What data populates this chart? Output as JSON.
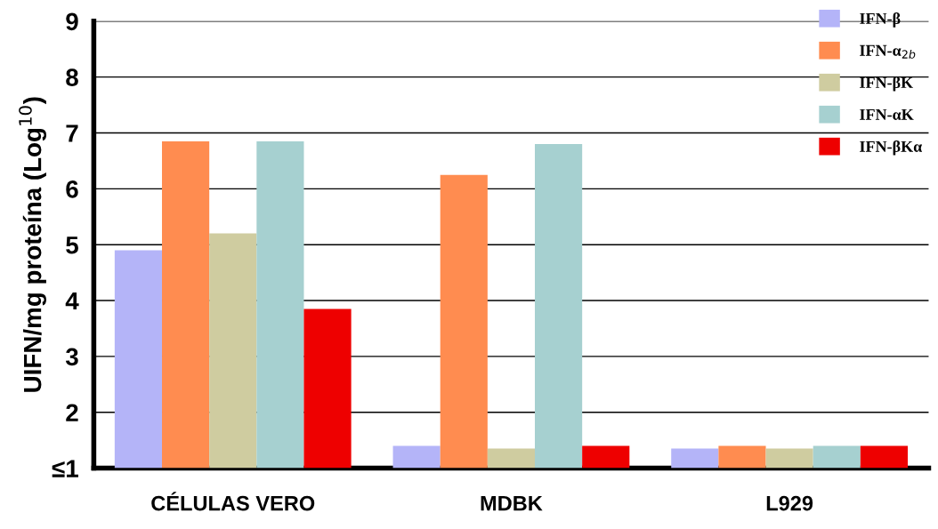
{
  "chart_data": {
    "type": "bar",
    "categories": [
      "CÉLULAS VERO",
      "MDBK",
      "L929"
    ],
    "ylabel": "UIFN/mg proteína (Log$^{10}$)",
    "series": [
      {
        "name": "IFN-β",
        "color": "#b4b4f8",
        "values": [
          4.9,
          1.4,
          1.35
        ]
      },
      {
        "name": "IFN-α$_{2b}$",
        "color": "#ff8c50",
        "values": [
          6.85,
          6.25,
          1.4
        ]
      },
      {
        "name": "IFN-βK",
        "color": "#cfcca0",
        "values": [
          5.2,
          1.35,
          1.35
        ]
      },
      {
        "name": "IFN-αK",
        "color": "#a6d0d0",
        "values": [
          6.85,
          6.8,
          1.4
        ]
      },
      {
        "name": "IFN-βKα",
        "color": "#ee0000",
        "values": [
          3.85,
          1.4,
          1.4
        ]
      }
    ],
    "ylim": [
      1,
      9
    ],
    "yticks": [
      {
        "value": 1,
        "label": "≤1"
      },
      2,
      3,
      4,
      5,
      6,
      7,
      8,
      9
    ],
    "grid": "y",
    "legend": "top right"
  }
}
